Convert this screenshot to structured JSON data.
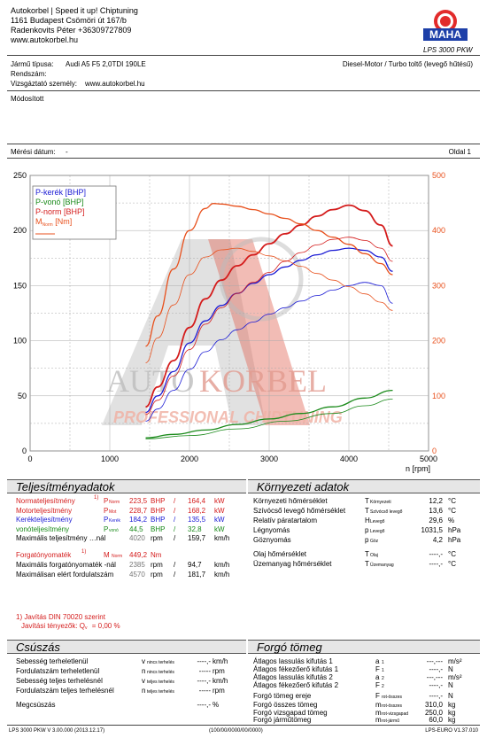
{
  "header": {
    "line1": "Autokorbel | Speed it up! Chiptuning",
    "line2": "1161 Budapest Csömöri út 167/b",
    "line3": "Radenkovits Péter +36309727809",
    "line4": "www.autokorbel.hu",
    "logo_model": "LPS 3000 PKW",
    "logo_text": "MAHA",
    "logo_ring": "Maschinenbau Haldenwang"
  },
  "vehicle": {
    "type_label": "Jármű típusa:",
    "type_value": "Audi A5 F5 2,0TDI 190LE",
    "engine": "Diesel-Motor / Turbo toltő (levegő hűtésű)",
    "plate_label": "Rendszám:",
    "tester_label": "Vizsgáztató személy:",
    "tester_value": "www.autokorbel.hu",
    "modified": "Módosított"
  },
  "measure": {
    "date_label": "Mérési dátum:",
    "date_value": "-",
    "page": "Oldal 1"
  },
  "watermark": {
    "auto": "AUTO",
    "korbel": "KORBEL",
    "sub": "PROFESSIONAL CHIPTUNING"
  },
  "colors": {
    "wheel": "#1b1bd4",
    "drag": "#1a8a1a",
    "norm": "#d41c1c",
    "torque": "#e8501c",
    "right_axis": "#e8501c"
  },
  "chart_data": {
    "type": "line",
    "xlabel": "n [rpm]",
    "xlim": [
      0,
      5000
    ],
    "ylim_left": [
      0,
      250
    ],
    "ylim_right": [
      0,
      500
    ],
    "x_ticks": [
      "0",
      "1000",
      "2000",
      "3000",
      "4000",
      "5000"
    ],
    "y_ticks_left": [
      "0",
      "50",
      "100",
      "150",
      "200",
      "250"
    ],
    "y_ticks_right": [
      "0",
      "100",
      "200",
      "300",
      "400",
      "500"
    ],
    "legend": [
      "P-kerék [BHP]",
      "P-vonó [BHP]",
      "P-norm [BHP]",
      "M [Nm]"
    ],
    "legend_torque_sub": "Norm",
    "grid": true,
    "series": [
      {
        "name": "P-kerék [BHP]",
        "color": "#1b1bd4",
        "width": 1.3,
        "x": [
          1450,
          1600,
          1800,
          2000,
          2200,
          2400,
          2600,
          2800,
          3000,
          3200,
          3400,
          3600,
          3800,
          4000,
          4200,
          4400,
          4550
        ],
        "y": [
          35,
          50,
          72,
          98,
          118,
          132,
          143,
          152,
          160,
          167,
          173,
          178,
          182,
          184,
          182,
          176,
          163
        ]
      },
      {
        "name": "P-vonó [BHP]",
        "color": "#1a8a1a",
        "width": 1.3,
        "x": [
          1450,
          1800,
          2200,
          2600,
          3000,
          3400,
          3800,
          4200,
          4550
        ],
        "y": [
          12,
          15,
          19,
          24,
          29,
          34,
          40,
          48,
          55
        ]
      },
      {
        "name": "P-norm [BHP]",
        "color": "#d41c1c",
        "width": 1.8,
        "x": [
          1450,
          1600,
          1800,
          2000,
          2200,
          2400,
          2600,
          2800,
          3000,
          3200,
          3400,
          3600,
          3800,
          4000,
          4200,
          4400,
          4550
        ],
        "y": [
          40,
          58,
          82,
          112,
          138,
          155,
          168,
          178,
          188,
          197,
          205,
          213,
          219,
          223,
          218,
          205,
          186
        ]
      },
      {
        "name": "M [Nm]",
        "color": "#e8501c",
        "width": 1.3,
        "axis": "right",
        "x": [
          1450,
          1600,
          1800,
          2000,
          2200,
          2300,
          2400,
          2600,
          2800,
          3000,
          3200,
          3400,
          3600,
          3800,
          4000,
          4200,
          4400,
          4550
        ],
        "y": [
          190,
          245,
          330,
          400,
          440,
          449,
          448,
          444,
          438,
          430,
          422,
          412,
          400,
          388,
          375,
          358,
          340,
          320
        ]
      },
      {
        "name": "M kerék",
        "color": "#1b1bd4",
        "width": 0.8,
        "x": [
          1450,
          1600,
          1800,
          2000,
          2200,
          2400,
          2600,
          2800,
          3000,
          3200,
          3400,
          3600,
          3800,
          4000,
          4200,
          4400,
          4550
        ],
        "y": [
          27,
          38,
          55,
          74,
          90,
          101,
          110,
          117,
          124,
          130,
          136,
          141,
          146,
          150,
          153,
          150,
          134
        ]
      },
      {
        "name": "P-vonó hullám",
        "color": "#1a8a1a",
        "width": 0.8,
        "x": [
          1450,
          2000,
          2600,
          3200,
          3800,
          4200,
          4550
        ],
        "y": [
          11,
          14,
          20,
          27,
          34,
          41,
          47
        ]
      },
      {
        "name": "M norm 2",
        "color": "#e8501c",
        "width": 0.8,
        "axis": "right",
        "x": [
          1450,
          1600,
          1800,
          2000,
          2200,
          2400,
          2600,
          2800,
          3000,
          3200,
          3400,
          3600,
          3800,
          4000,
          4200,
          4400,
          4550
        ],
        "y": [
          160,
          205,
          265,
          320,
          352,
          365,
          368,
          362,
          354,
          345,
          335,
          322,
          310,
          298,
          285,
          270,
          255
        ]
      },
      {
        "name": "P-norm 2",
        "color": "#d41c1c",
        "width": 0.8,
        "x": [
          1450,
          1600,
          1800,
          2000,
          2200,
          2400,
          2600,
          2800,
          3000,
          3200,
          3400,
          3600,
          3800,
          4000,
          4200,
          4400,
          4550
        ],
        "y": [
          33,
          46,
          68,
          92,
          115,
          130,
          143,
          153,
          162,
          172,
          180,
          187,
          192,
          194,
          191,
          184,
          172
        ]
      }
    ]
  },
  "performance": {
    "title": "Teljesítményadatok",
    "rows": [
      {
        "label": "Normateljesítmény ",
        "note": "1)",
        "sym": "P",
        "sub": "Norm",
        "v1": "223,5",
        "u1": "BHP",
        "sep": "/",
        "v2": "164,4",
        "u2": "kW",
        "cls": "red"
      },
      {
        "label": "Motorteljesítmény",
        "note": "",
        "sym": "P",
        "sub": "Mot",
        "v1": "228,7",
        "u1": "BHP",
        "sep": "/",
        "v2": "168,2",
        "u2": "kW",
        "cls": "red"
      },
      {
        "label": "Kerékteljesítmény",
        "note": "",
        "sym": "P",
        "sub": "Kerék",
        "v1": "184,2",
        "u1": "BHP",
        "sep": "/",
        "v2": "135,5",
        "u2": "kW",
        "cls": "blue"
      },
      {
        "label": "vonóteljesítmény",
        "note": "",
        "sym": "P",
        "sub": "vonó",
        "v1": "44,5",
        "u1": "BHP",
        "sep": "/",
        "v2": "32,8",
        "u2": "kW",
        "cls": "green"
      },
      {
        "label": "Maximális teljesítmény …nál",
        "note": "",
        "sym": "",
        "sub": "",
        "v1": "4020",
        "u1": "rpm",
        "sep": "/",
        "v2": "159,7",
        "u2": "km/h",
        "cls": ""
      }
    ],
    "torque_label": "Forgatónyomaték",
    "torque_note": "1)",
    "torque_sym": "M",
    "torque_sub": "Norm",
    "torque_value": "449,2",
    "torque_unit": "Nm",
    "torque_rpm_label": "Maximális forgatónyomaték -nál",
    "torque_rpm": "2385",
    "torque_rpm_unit": "rpm",
    "torque_speed": "94,7",
    "torque_speed_unit": "km/h",
    "max_rpm_label": "Maximálisan elért fordulatszám",
    "max_rpm": "4570",
    "max_rpm_unit": "rpm",
    "max_speed": "181,7",
    "max_speed_unit": "km/h",
    "din_note": "1) Javítás DIN 70020 szerint",
    "din_factor": "Javítási tényezők: Q",
    "din_factor_sub": "v",
    "din_factor_value": "=   0,00 %"
  },
  "environment": {
    "title": "Környezeti adatok",
    "rows": [
      {
        "label": "Környezeti hőmérséklet",
        "sym": "T",
        "sub": "Környezeti",
        "value": "12,2",
        "unit": "°C"
      },
      {
        "label": "Szívócső levegő hőmérséklet",
        "sym": "T",
        "sub": "Szívócső levegő",
        "value": "13,6",
        "unit": "°C"
      },
      {
        "label": "Relatív páratartalom",
        "sym": "H",
        "sub": "Levegő",
        "value": "29,6",
        "unit": "%"
      },
      {
        "label": "Légnyomás",
        "sym": "p",
        "sub": "Levegő",
        "value": "1031,5",
        "unit": "hPa"
      },
      {
        "label": "Göznyomás",
        "sym": "p",
        "sub": "Göz",
        "value": "4,2",
        "unit": "hPa"
      },
      {
        "label": "Olaj hőmérséklet",
        "sym": "T",
        "sub": "Olaj",
        "value": "----,-",
        "unit": "°C"
      },
      {
        "label": "Üzemanyag hőmérséklet",
        "sym": "T",
        "sub": "Üzemanyag",
        "value": "----,-",
        "unit": "°C"
      }
    ]
  },
  "slip": {
    "title": "Csúszás",
    "rows": [
      {
        "label": "Sebesség terheletlenül",
        "sym": "v",
        "sub": "nincs terhelés",
        "value": "----,-",
        "unit": "km/h"
      },
      {
        "label": "Fordulatszám terheletlenül",
        "sym": "n",
        "sub": "nincs terhelés",
        "value": "-----",
        "unit": "rpm"
      },
      {
        "label": "Sebesség teljes terhelésnél",
        "sym": "v",
        "sub": "teljes terhelés",
        "value": "----,-",
        "unit": "km/h"
      },
      {
        "label": "Fordulatszám teljes terhelésnél",
        "sym": "n",
        "sub": "teljes terhelés",
        "value": "-----",
        "unit": "rpm"
      },
      {
        "label": "Megcsúszás",
        "sym": "",
        "sub": "",
        "value": "----,-",
        "unit": "%"
      }
    ]
  },
  "mass": {
    "title": "Forgó tömeg",
    "rows": [
      {
        "label": "Átlagos lassulás kifutás 1",
        "sym": "a",
        "sub": "1",
        "value": "---,---",
        "unit": "m/s²"
      },
      {
        "label": "Átlagos fékezőerő kifutás 1",
        "sym": "F",
        "sub": "1",
        "value": "----,-",
        "unit": "N"
      },
      {
        "label": "Átlagos lassulás kifutás 2",
        "sym": "a",
        "sub": "2",
        "value": "---,---",
        "unit": "m/s²"
      },
      {
        "label": "Átlagos fékezőerő kifutás 2",
        "sym": "F",
        "sub": "2",
        "value": "----,-",
        "unit": "N"
      },
      {
        "label": "Forgó tömeg ereje",
        "sym": "F",
        "sub": "rot-összes",
        "value": "----,-",
        "unit": "N"
      },
      {
        "label": "Forgó összes tömeg",
        "sym": "m",
        "sub": "rot-összes",
        "value": "310,0",
        "unit": "kg"
      },
      {
        "label": "Forgó vizsgapad tömeg",
        "sym": "m",
        "sub": "rot-vizsgapad",
        "value": "250,0",
        "unit": "kg"
      },
      {
        "label": "Forgó járműtömeg",
        "sym": "m",
        "sub": "rot-jármű",
        "value": "60,0",
        "unit": "kg"
      }
    ]
  },
  "footer": {
    "left": "LPS 3000 PKW V 3.00.000 (2013.12.17)",
    "center": "(100/00/0000/00/0000)",
    "right": "LPS-EURO V1.37.010"
  }
}
